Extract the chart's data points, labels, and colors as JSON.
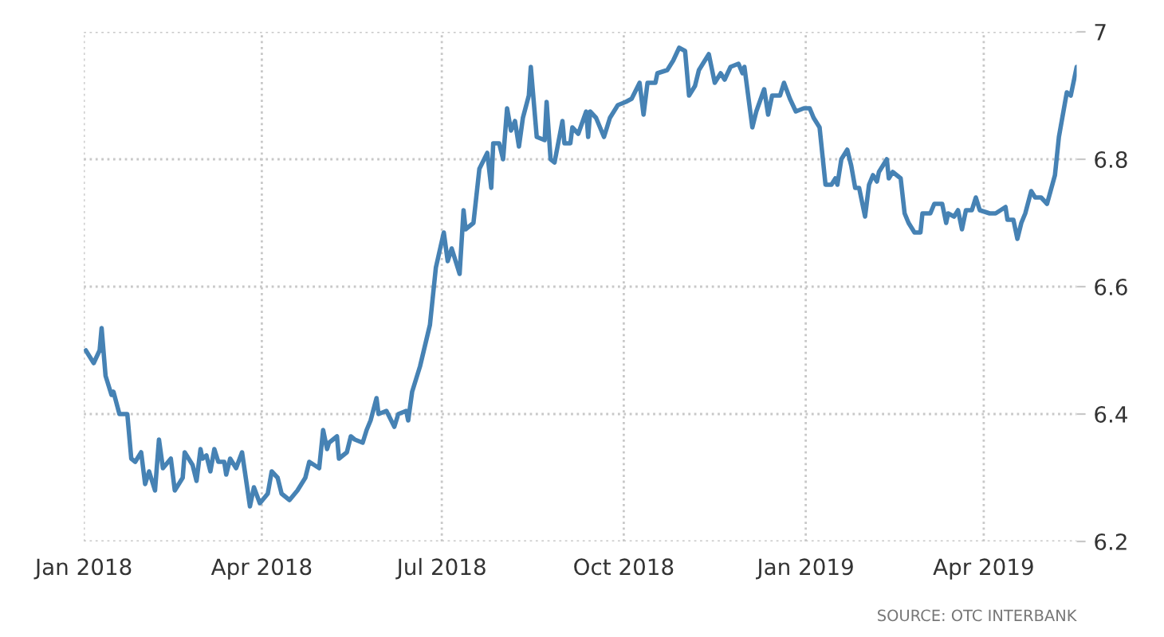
{
  "chart_data": {
    "type": "line",
    "x": [
      "2018-01-02",
      "2018-01-04",
      "2018-01-06",
      "2018-01-09",
      "2018-01-10",
      "2018-01-12",
      "2018-01-15",
      "2018-01-16",
      "2018-01-19",
      "2018-01-23",
      "2018-01-25",
      "2018-01-27",
      "2018-01-30",
      "2018-02-01",
      "2018-02-03",
      "2018-02-06",
      "2018-02-08",
      "2018-02-10",
      "2018-02-14",
      "2018-02-16",
      "2018-02-20",
      "2018-02-21",
      "2018-02-25",
      "2018-02-27",
      "2018-03-01",
      "2018-03-02",
      "2018-03-04",
      "2018-03-06",
      "2018-03-08",
      "2018-03-10",
      "2018-03-13",
      "2018-03-14",
      "2018-03-16",
      "2018-03-19",
      "2018-03-22",
      "2018-03-26",
      "2018-03-28",
      "2018-03-31",
      "2018-04-04",
      "2018-04-06",
      "2018-04-09",
      "2018-04-11",
      "2018-04-15",
      "2018-04-19",
      "2018-04-23",
      "2018-04-25",
      "2018-04-30",
      "2018-05-02",
      "2018-05-04",
      "2018-05-05",
      "2018-05-09",
      "2018-05-10",
      "2018-05-14",
      "2018-05-16",
      "2018-05-18",
      "2018-05-22",
      "2018-05-24",
      "2018-05-26",
      "2018-05-29",
      "2018-05-30",
      "2018-06-03",
      "2018-06-07",
      "2018-06-09",
      "2018-06-13",
      "2018-06-14",
      "2018-06-16",
      "2018-06-18",
      "2018-06-20",
      "2018-06-25",
      "2018-06-28",
      "2018-07-02",
      "2018-07-04",
      "2018-07-06",
      "2018-07-10",
      "2018-07-12",
      "2018-07-13",
      "2018-07-17",
      "2018-07-20",
      "2018-07-24",
      "2018-07-26",
      "2018-07-27",
      "2018-07-30",
      "2018-08-01",
      "2018-08-03",
      "2018-08-05",
      "2018-08-07",
      "2018-08-09",
      "2018-08-11",
      "2018-08-14",
      "2018-08-15",
      "2018-08-18",
      "2018-08-22",
      "2018-08-23",
      "2018-08-25",
      "2018-08-27",
      "2018-08-31",
      "2018-09-01",
      "2018-09-04",
      "2018-09-05",
      "2018-09-08",
      "2018-09-12",
      "2018-09-13",
      "2018-09-14",
      "2018-09-17",
      "2018-09-21",
      "2018-09-24",
      "2018-09-28",
      "2018-10-02",
      "2018-10-05",
      "2018-10-09",
      "2018-10-11",
      "2018-10-13",
      "2018-10-17",
      "2018-10-18",
      "2018-10-23",
      "2018-10-26",
      "2018-10-29",
      "2018-11-01",
      "2018-11-03",
      "2018-11-06",
      "2018-11-08",
      "2018-11-13",
      "2018-11-16",
      "2018-11-19",
      "2018-11-21",
      "2018-11-24",
      "2018-11-28",
      "2018-11-30",
      "2018-12-01",
      "2018-12-05",
      "2018-12-07",
      "2018-12-11",
      "2018-12-13",
      "2018-12-15",
      "2018-12-19",
      "2018-12-21",
      "2018-12-24",
      "2018-12-27",
      "2018-12-31",
      "2019-01-03",
      "2019-01-05",
      "2019-01-08",
      "2019-01-11",
      "2019-01-14",
      "2019-01-16",
      "2019-01-17",
      "2019-01-19",
      "2019-01-22",
      "2019-01-24",
      "2019-01-26",
      "2019-01-28",
      "2019-01-31",
      "2019-02-02",
      "2019-02-04",
      "2019-02-06",
      "2019-02-07",
      "2019-02-11",
      "2019-02-12",
      "2019-02-14",
      "2019-02-18",
      "2019-02-20",
      "2019-02-22",
      "2019-02-25",
      "2019-02-28",
      "2019-03-01",
      "2019-03-05",
      "2019-03-07",
      "2019-03-11",
      "2019-03-13",
      "2019-03-14",
      "2019-03-17",
      "2019-03-19",
      "2019-03-21",
      "2019-03-23",
      "2019-03-26",
      "2019-03-28",
      "2019-03-30",
      "2019-04-04",
      "2019-04-07",
      "2019-04-12",
      "2019-04-13",
      "2019-04-16",
      "2019-04-18",
      "2019-04-20",
      "2019-04-22",
      "2019-04-25",
      "2019-04-27",
      "2019-04-30",
      "2019-05-03",
      "2019-05-07",
      "2019-05-09",
      "2019-05-13",
      "2019-05-15",
      "2019-05-18"
    ],
    "series": [
      {
        "color": "#4682b4",
        "values": [
          6.5,
          6.49,
          6.48,
          6.5,
          6.535,
          6.46,
          6.43,
          6.435,
          6.4,
          6.4,
          6.33,
          6.325,
          6.34,
          6.29,
          6.31,
          6.28,
          6.36,
          6.315,
          6.33,
          6.28,
          6.3,
          6.34,
          6.32,
          6.295,
          6.345,
          6.33,
          6.335,
          6.31,
          6.345,
          6.325,
          6.325,
          6.305,
          6.33,
          6.315,
          6.34,
          6.255,
          6.285,
          6.26,
          6.275,
          6.31,
          6.3,
          6.275,
          6.265,
          6.28,
          6.3,
          6.325,
          6.315,
          6.375,
          6.345,
          6.355,
          6.365,
          6.33,
          6.34,
          6.365,
          6.36,
          6.355,
          6.375,
          6.39,
          6.425,
          6.4,
          6.405,
          6.38,
          6.4,
          6.405,
          6.39,
          6.435,
          6.455,
          6.475,
          6.54,
          6.63,
          6.685,
          6.64,
          6.66,
          6.62,
          6.72,
          6.69,
          6.7,
          6.785,
          6.81,
          6.755,
          6.825,
          6.825,
          6.8,
          6.88,
          6.845,
          6.86,
          6.82,
          6.865,
          6.9,
          6.945,
          6.835,
          6.83,
          6.89,
          6.8,
          6.795,
          6.86,
          6.825,
          6.825,
          6.85,
          6.84,
          6.875,
          6.835,
          6.875,
          6.865,
          6.835,
          6.865,
          6.885,
          6.89,
          6.895,
          6.92,
          6.87,
          6.92,
          6.92,
          6.935,
          6.94,
          6.955,
          6.975,
          6.97,
          6.9,
          6.915,
          6.94,
          6.965,
          6.92,
          6.935,
          6.925,
          6.945,
          6.95,
          6.935,
          6.945,
          6.85,
          6.875,
          6.91,
          6.87,
          6.9,
          6.9,
          6.92,
          6.895,
          6.875,
          6.88,
          6.88,
          6.865,
          6.85,
          6.76,
          6.76,
          6.77,
          6.76,
          6.8,
          6.815,
          6.79,
          6.755,
          6.755,
          6.71,
          6.76,
          6.775,
          6.765,
          6.78,
          6.8,
          6.77,
          6.78,
          6.77,
          6.715,
          6.7,
          6.685,
          6.685,
          6.715,
          6.715,
          6.73,
          6.73,
          6.7,
          6.715,
          6.71,
          6.72,
          6.69,
          6.72,
          6.72,
          6.74,
          6.72,
          6.715,
          6.715,
          6.725,
          6.705,
          6.705,
          6.675,
          6.7,
          6.715,
          6.75,
          6.74,
          6.74,
          6.73,
          6.775,
          6.835,
          6.905,
          6.9,
          6.945
        ]
      }
    ],
    "xlim": [
      "2018-01-01",
      "2019-05-18"
    ],
    "xticks": [
      {
        "value": "2018-01-01",
        "label": "Jan 2018"
      },
      {
        "value": "2018-04-01",
        "label": "Apr 2018"
      },
      {
        "value": "2018-07-01",
        "label": "Jul 2018"
      },
      {
        "value": "2018-10-01",
        "label": "Oct 2018"
      },
      {
        "value": "2019-01-01",
        "label": "Jan 2019"
      },
      {
        "value": "2019-04-01",
        "label": "Apr 2019"
      }
    ],
    "ylim": [
      6.2,
      7
    ],
    "yticks": [
      6.2,
      6.4,
      6.6,
      6.8,
      7
    ],
    "grid": true,
    "line_style": "solid",
    "annotations": [
      "SOURCE: OTC INTERBANK"
    ]
  }
}
